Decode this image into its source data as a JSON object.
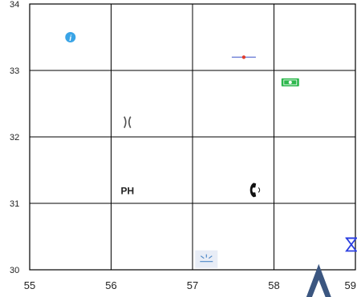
{
  "map": {
    "x_ticks": [
      "55",
      "56",
      "57",
      "58",
      "59"
    ],
    "y_ticks": [
      "30",
      "31",
      "32",
      "33",
      "34"
    ],
    "x_range": [
      55,
      59
    ],
    "y_range": [
      30,
      34
    ],
    "grid": true,
    "colors": {
      "grid_line": "#000000",
      "info_marker": "#3aa4e6",
      "cash_marker": "#2db84d",
      "hourglass_marker": "#2a3ee0",
      "arrow_marker": "#3b5680",
      "pin_line": "#6a7bd6",
      "pin_center": "#e03c2c"
    },
    "markers": [
      {
        "name": "info-icon",
        "x": 55.5,
        "y": 33.5
      },
      {
        "name": "pin-icon",
        "x": 57.63,
        "y": 33.2
      },
      {
        "name": "cash-icon",
        "x": 58.2,
        "y": 32.82
      },
      {
        "name": "parentheses-icon",
        "x": 56.2,
        "y": 32.22
      },
      {
        "name": "telephone-icon",
        "x": 57.78,
        "y": 31.2
      },
      {
        "name": "sprinkler-icon",
        "x": 57.17,
        "y": 30.16
      },
      {
        "name": "hourglass-icon",
        "x": 58.95,
        "y": 30.38
      },
      {
        "name": "arrow-up-icon",
        "x": 58.55,
        "y": 29.75
      },
      {
        "name": "ph-label",
        "x": 56.2,
        "y": 31.2
      }
    ],
    "labels": {
      "ph": "PH"
    }
  }
}
